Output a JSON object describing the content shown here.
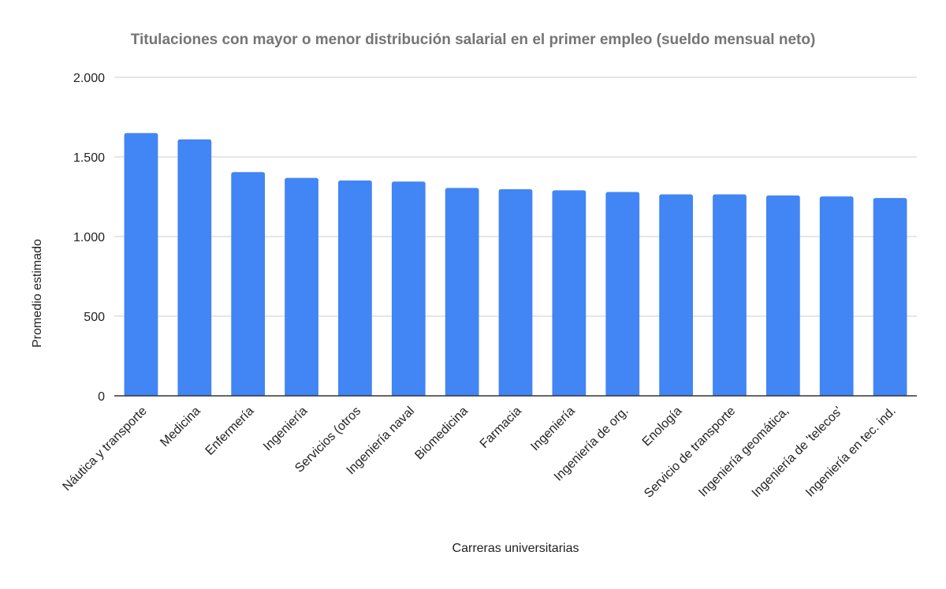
{
  "chart_data": {
    "type": "bar",
    "title": "Titulaciones con mayor o menor distribución salarial en el primer empleo (sueldo mensual neto)",
    "xlabel": "Carreras universitarias",
    "ylabel": "Promedio estimado",
    "categories": [
      "Náutica y transporte",
      "Medicina",
      "Enfermería",
      "Ingeniería",
      "Servicios (otros",
      "Ingeniería naval",
      "Biomedicina",
      "Farmacia",
      "Ingeniería",
      "Ingeniería de org.",
      "Enología",
      "Servicio de transporte",
      "Ingeniería geomática,",
      "Ingeniería de 'telecos'",
      "Ingeniería en tec. ind."
    ],
    "series": [
      {
        "values": [
          1650,
          1610,
          1405,
          1368,
          1352,
          1345,
          1305,
          1297,
          1290,
          1280,
          1265,
          1265,
          1258,
          1252,
          1242
        ]
      }
    ],
    "ylim": [
      0,
      2000
    ],
    "yticks": [
      0,
      500,
      1000,
      1500,
      2000
    ],
    "ytick_labels": [
      "0",
      "500",
      "1.000",
      "1.500",
      "2.000"
    ],
    "grid": true,
    "legend": "none",
    "colors": {
      "bar": "#4285f4",
      "grid": "#cccccc",
      "axis": "#333333",
      "title": "#757575",
      "text": "#222222"
    }
  }
}
